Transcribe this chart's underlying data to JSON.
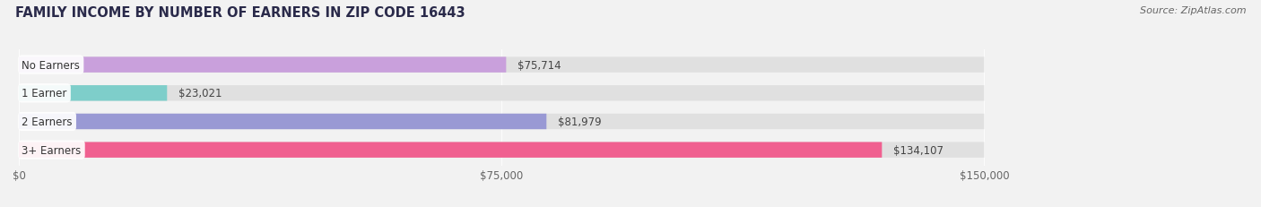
{
  "title": "FAMILY INCOME BY NUMBER OF EARNERS IN ZIP CODE 16443",
  "source": "Source: ZipAtlas.com",
  "categories": [
    "No Earners",
    "1 Earner",
    "2 Earners",
    "3+ Earners"
  ],
  "values": [
    75714,
    23021,
    81979,
    134107
  ],
  "bar_colors": [
    "#c9a0dc",
    "#7ececa",
    "#9999d4",
    "#f06090"
  ],
  "bar_labels": [
    "$75,714",
    "$23,021",
    "$81,979",
    "$134,107"
  ],
  "xlim": [
    0,
    150000
  ],
  "xticks": [
    0,
    75000,
    150000
  ],
  "xtick_labels": [
    "$0",
    "$75,000",
    "$150,000"
  ],
  "background_color": "#f2f2f2",
  "bar_bg_color": "#e0e0e0",
  "title_fontsize": 10.5,
  "source_fontsize": 8,
  "label_fontsize": 8.5,
  "tick_fontsize": 8.5,
  "bar_height": 0.55
}
